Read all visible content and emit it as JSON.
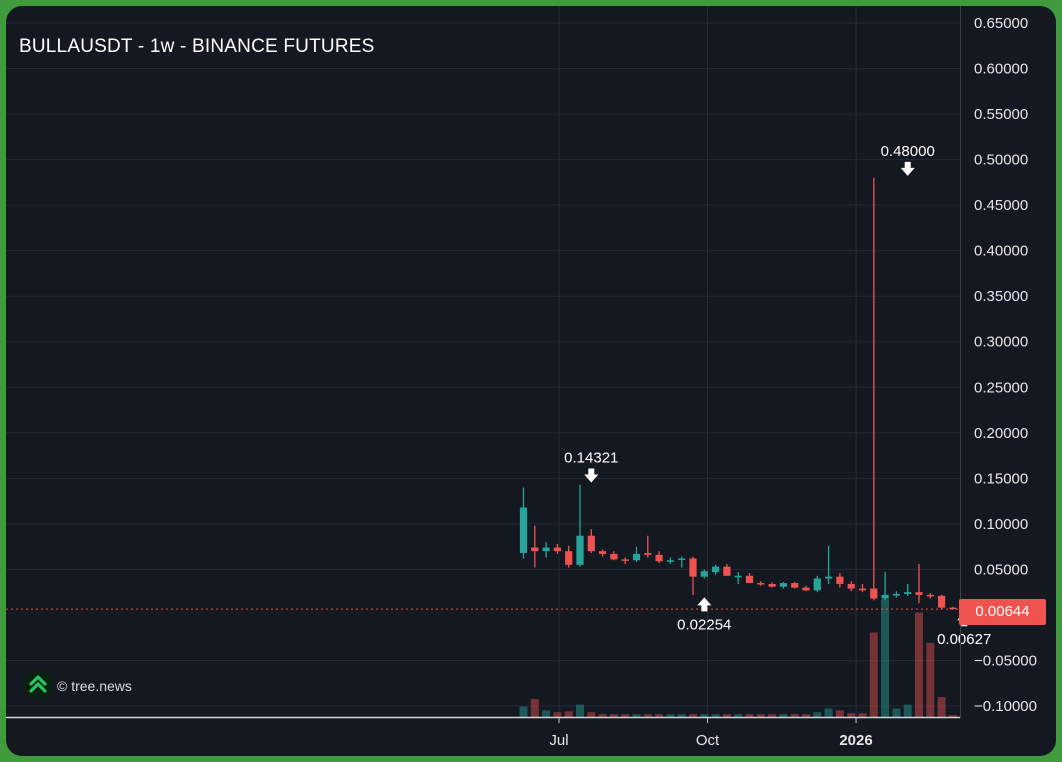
{
  "chart_title": "BULLAUSDT - 1w - BINANCE FUTURES",
  "watermark": "© tree.news",
  "current_price": "0.00644",
  "colors": {
    "background": "#141821",
    "frame": "#3f9b3c",
    "up": "#26a69a",
    "down": "#ef5350",
    "grid": "#252a35",
    "axis_text": "#e6e6e6"
  },
  "chart_data": {
    "type": "candlestick",
    "title": "BULLAUSDT - 1w - BINANCE FUTURES",
    "ylim": [
      -0.1,
      0.65
    ],
    "y_ticks": [
      "0.65000",
      "0.60000",
      "0.55000",
      "0.50000",
      "0.45000",
      "0.40000",
      "0.35000",
      "0.30000",
      "0.25000",
      "0.20000",
      "0.15000",
      "0.10000",
      "0.05000",
      "0.00644",
      "−0.05000",
      "−0.10000"
    ],
    "x_ticks": [
      {
        "label": "Jul",
        "date": "2025-07-01",
        "bold": false
      },
      {
        "label": "Oct",
        "date": "2025-10-01",
        "bold": false
      },
      {
        "label": "2026",
        "date": "2026-01-01",
        "bold": true
      }
    ],
    "grid": true,
    "current_price_line": 0.00644,
    "annotations": [
      {
        "label": "0.14321",
        "date": "2025-07-21",
        "price": 0.14321,
        "arrow": "down"
      },
      {
        "label": "0.02254",
        "date": "2025-09-29",
        "price": 0.02254,
        "arrow": "up"
      },
      {
        "label": "0.48000",
        "date": "2026-02-02",
        "price": 0.48,
        "arrow": "down"
      },
      {
        "label": "0.00627",
        "date": "2026-03-09",
        "price": 0.00627,
        "arrow": "up"
      }
    ],
    "candles": [
      {
        "date": "2025-06-09",
        "open": 0.068,
        "high": 0.14,
        "low": 0.062,
        "close": 0.118,
        "volume": 0.11
      },
      {
        "date": "2025-06-16",
        "open": 0.074,
        "high": 0.098,
        "low": 0.052,
        "close": 0.07,
        "volume": 0.19
      },
      {
        "date": "2025-06-23",
        "open": 0.07,
        "high": 0.08,
        "low": 0.063,
        "close": 0.074,
        "volume": 0.07
      },
      {
        "date": "2025-06-30",
        "open": 0.074,
        "high": 0.078,
        "low": 0.067,
        "close": 0.07,
        "volume": 0.05
      },
      {
        "date": "2025-07-07",
        "open": 0.07,
        "high": 0.076,
        "low": 0.052,
        "close": 0.055,
        "volume": 0.06
      },
      {
        "date": "2025-07-14",
        "open": 0.055,
        "high": 0.143,
        "low": 0.053,
        "close": 0.087,
        "volume": 0.13
      },
      {
        "date": "2025-07-21",
        "open": 0.087,
        "high": 0.094,
        "low": 0.068,
        "close": 0.07,
        "volume": 0.05
      },
      {
        "date": "2025-07-28",
        "open": 0.07,
        "high": 0.072,
        "low": 0.064,
        "close": 0.067,
        "volume": 0.03
      },
      {
        "date": "2025-08-04",
        "open": 0.067,
        "high": 0.07,
        "low": 0.06,
        "close": 0.061,
        "volume": 0.03
      },
      {
        "date": "2025-08-11",
        "open": 0.061,
        "high": 0.063,
        "low": 0.056,
        "close": 0.06,
        "volume": 0.03
      },
      {
        "date": "2025-08-18",
        "open": 0.06,
        "high": 0.075,
        "low": 0.058,
        "close": 0.067,
        "volume": 0.03
      },
      {
        "date": "2025-08-25",
        "open": 0.068,
        "high": 0.087,
        "low": 0.063,
        "close": 0.066,
        "volume": 0.03
      },
      {
        "date": "2025-09-01",
        "open": 0.066,
        "high": 0.07,
        "low": 0.057,
        "close": 0.059,
        "volume": 0.03
      },
      {
        "date": "2025-09-08",
        "open": 0.059,
        "high": 0.063,
        "low": 0.056,
        "close": 0.06,
        "volume": 0.03
      },
      {
        "date": "2025-09-15",
        "open": 0.062,
        "high": 0.064,
        "low": 0.052,
        "close": 0.062,
        "volume": 0.03
      },
      {
        "date": "2025-09-22",
        "open": 0.062,
        "high": 0.064,
        "low": 0.022,
        "close": 0.042,
        "volume": 0.03
      },
      {
        "date": "2025-09-29",
        "open": 0.042,
        "high": 0.05,
        "low": 0.04,
        "close": 0.048,
        "volume": 0.03
      },
      {
        "date": "2025-10-06",
        "open": 0.047,
        "high": 0.055,
        "low": 0.044,
        "close": 0.053,
        "volume": 0.03
      },
      {
        "date": "2025-10-13",
        "open": 0.053,
        "high": 0.056,
        "low": 0.043,
        "close": 0.043,
        "volume": 0.03
      },
      {
        "date": "2025-10-20",
        "open": 0.043,
        "high": 0.047,
        "low": 0.034,
        "close": 0.043,
        "volume": 0.03
      },
      {
        "date": "2025-10-27",
        "open": 0.043,
        "high": 0.046,
        "low": 0.035,
        "close": 0.035,
        "volume": 0.03
      },
      {
        "date": "2025-11-03",
        "open": 0.035,
        "high": 0.037,
        "low": 0.032,
        "close": 0.034,
        "volume": 0.03
      },
      {
        "date": "2025-11-10",
        "open": 0.034,
        "high": 0.036,
        "low": 0.03,
        "close": 0.031,
        "volume": 0.03
      },
      {
        "date": "2025-11-17",
        "open": 0.031,
        "high": 0.036,
        "low": 0.029,
        "close": 0.035,
        "volume": 0.03
      },
      {
        "date": "2025-11-24",
        "open": 0.035,
        "high": 0.036,
        "low": 0.029,
        "close": 0.03,
        "volume": 0.03
      },
      {
        "date": "2025-12-01",
        "open": 0.03,
        "high": 0.032,
        "low": 0.026,
        "close": 0.027,
        "volume": 0.03
      },
      {
        "date": "2025-12-08",
        "open": 0.027,
        "high": 0.043,
        "low": 0.025,
        "close": 0.04,
        "volume": 0.05
      },
      {
        "date": "2025-12-15",
        "open": 0.04,
        "high": 0.076,
        "low": 0.034,
        "close": 0.042,
        "volume": 0.09
      },
      {
        "date": "2025-12-22",
        "open": 0.042,
        "high": 0.046,
        "low": 0.03,
        "close": 0.034,
        "volume": 0.07
      },
      {
        "date": "2025-12-29",
        "open": 0.034,
        "high": 0.037,
        "low": 0.026,
        "close": 0.029,
        "volume": 0.04
      },
      {
        "date": "2026-01-05",
        "open": 0.029,
        "high": 0.034,
        "low": 0.025,
        "close": 0.027,
        "volume": 0.04
      },
      {
        "date": "2026-01-12",
        "open": 0.029,
        "high": 0.48,
        "low": 0.016,
        "close": 0.018,
        "volume": 0.89
      },
      {
        "date": "2026-01-19",
        "open": 0.018,
        "high": 0.047,
        "low": 0.016,
        "close": 0.022,
        "volume": 1.24
      },
      {
        "date": "2026-01-26",
        "open": 0.022,
        "high": 0.026,
        "low": 0.019,
        "close": 0.023,
        "volume": 0.09
      },
      {
        "date": "2026-02-02",
        "open": 0.023,
        "high": 0.034,
        "low": 0.021,
        "close": 0.025,
        "volume": 0.13
      },
      {
        "date": "2026-02-09",
        "open": 0.025,
        "high": 0.056,
        "low": 0.013,
        "close": 0.022,
        "volume": 1.1
      },
      {
        "date": "2026-02-16",
        "open": 0.022,
        "high": 0.024,
        "low": 0.018,
        "close": 0.021,
        "volume": 0.78
      },
      {
        "date": "2026-02-23",
        "open": 0.021,
        "high": 0.022,
        "low": 0.006,
        "close": 0.008,
        "volume": 0.21
      },
      {
        "date": "2026-03-02",
        "open": 0.008,
        "high": 0.009,
        "low": 0.006,
        "close": 0.00644,
        "volume": 0.02
      }
    ]
  }
}
